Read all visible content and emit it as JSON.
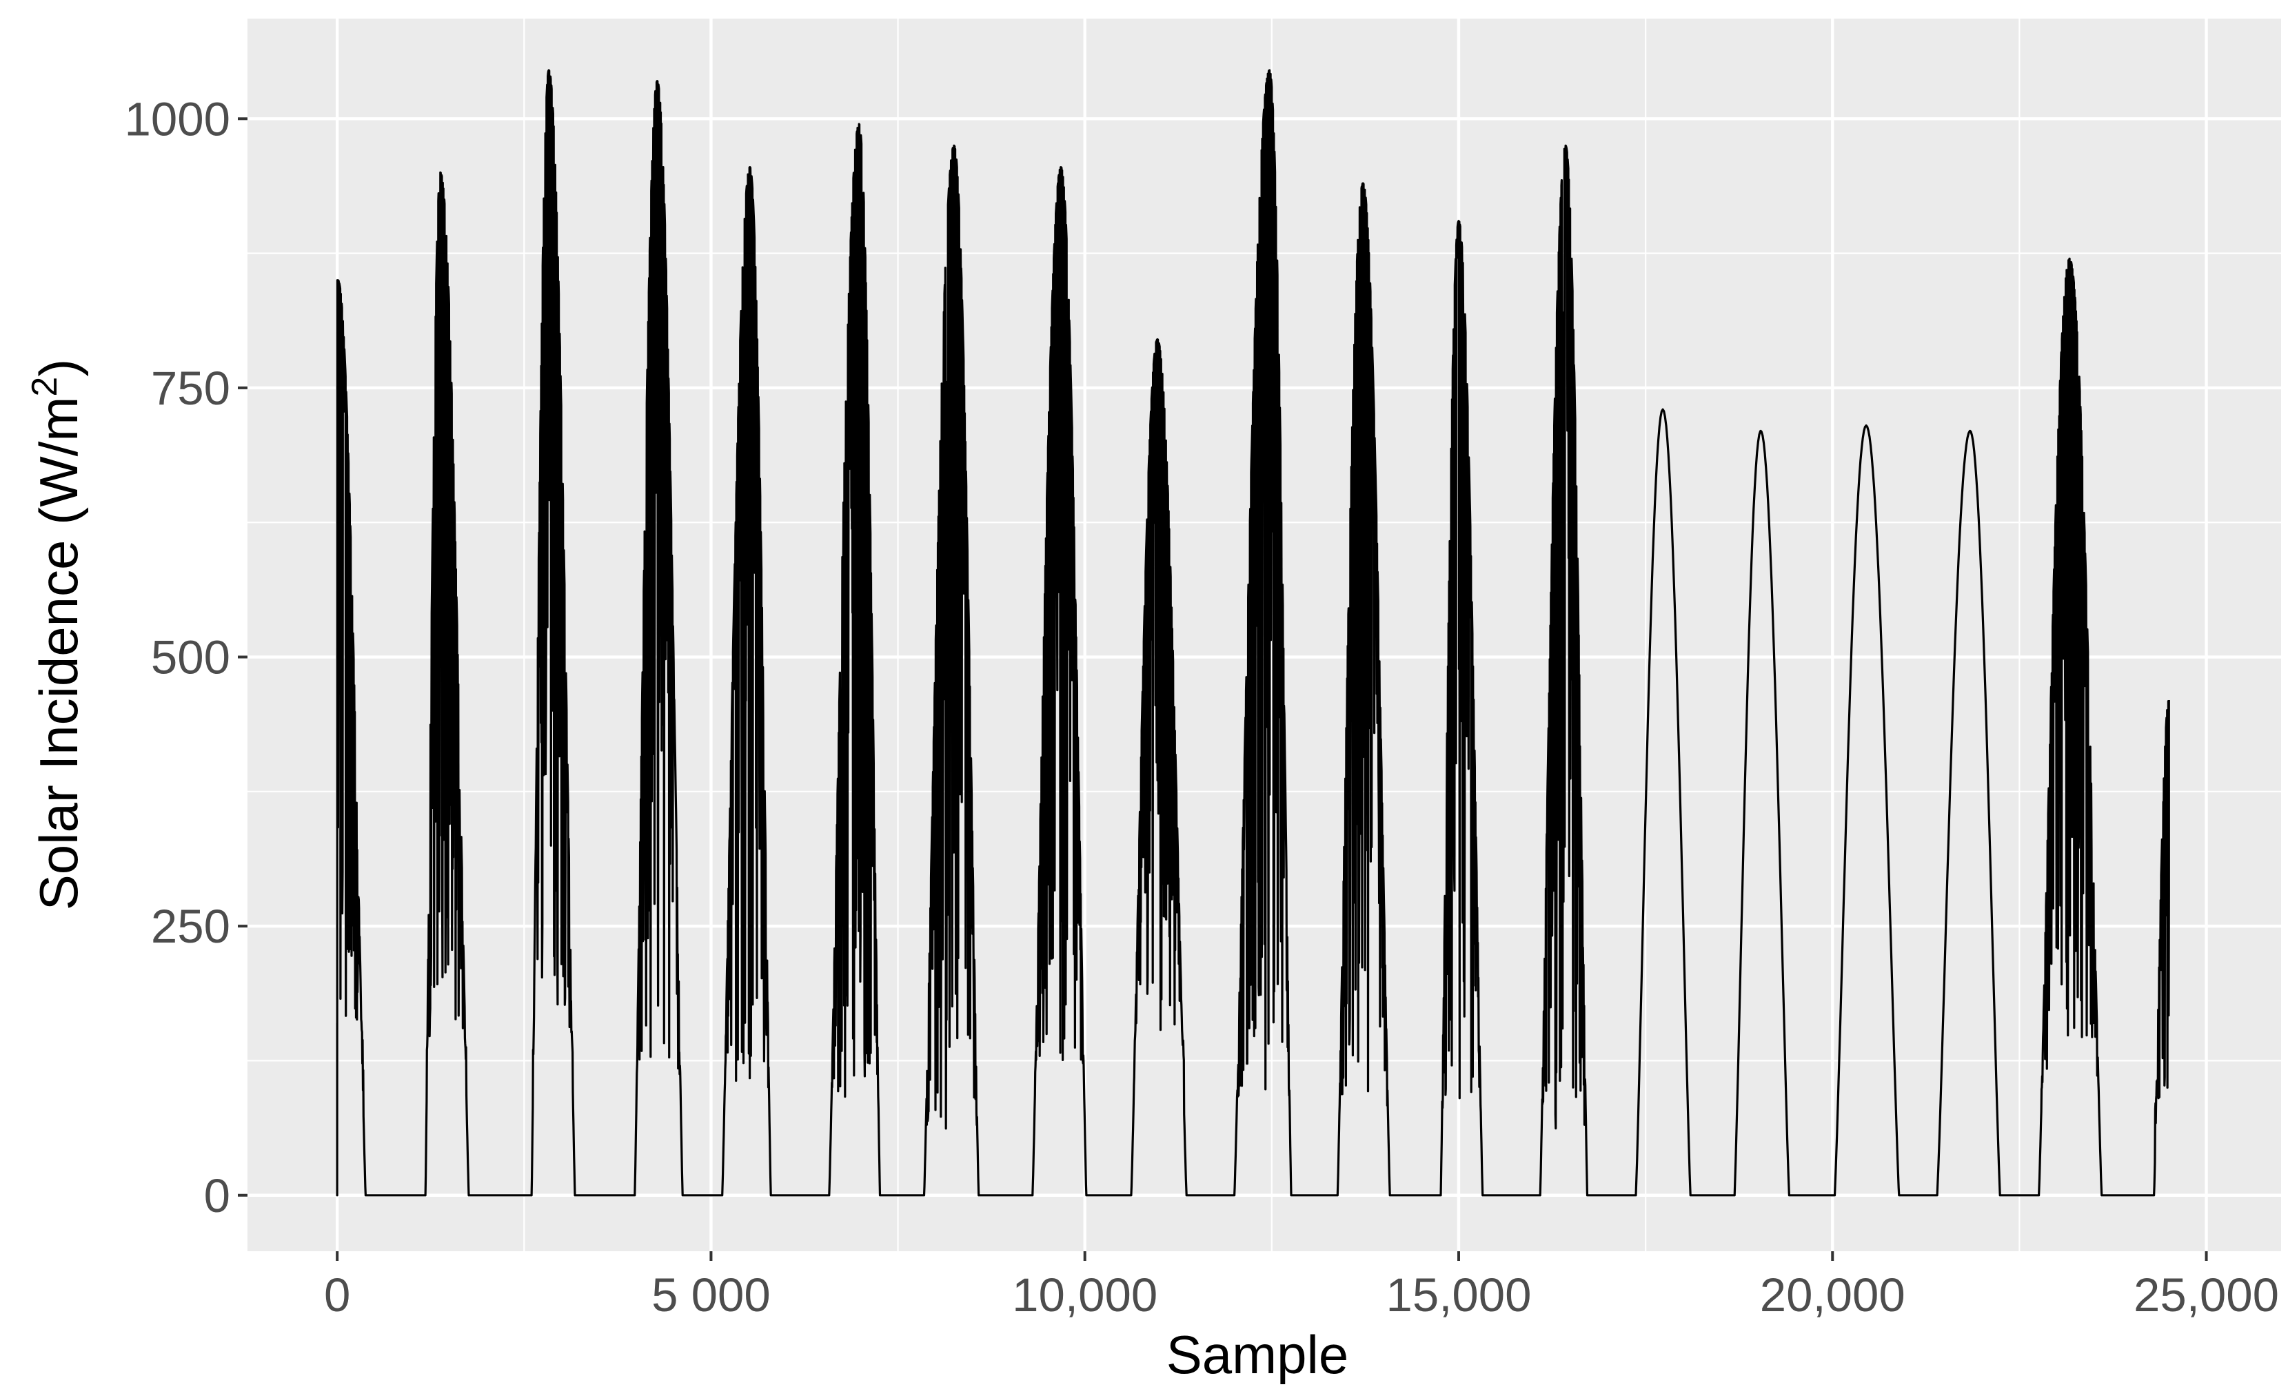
{
  "chart_data": {
    "type": "line",
    "title": "",
    "xlabel": "Sample",
    "ylabel": "Solar Incidence (W/m",
    "ylabel_superscript": "2",
    "ylabel_suffix": ")",
    "xlim": [
      -1200,
      26000
    ],
    "ylim": [
      -52,
      1093
    ],
    "x_ticks": [
      0,
      5000,
      10000,
      15000,
      20000,
      25000
    ],
    "x_tick_labels": [
      "0",
      "5 000",
      "10,000",
      "15,000",
      "20,000",
      "25,000"
    ],
    "y_ticks": [
      0,
      250,
      500,
      750,
      1000
    ],
    "y_tick_labels": [
      "0",
      "250",
      "500",
      "750",
      "1000"
    ],
    "grid": true,
    "legend": "none",
    "colors": {
      "panel_background": "#ebebeb",
      "grid": "#ffffff",
      "line": "#000000"
    },
    "series": [
      {
        "color": "#000000",
        "daily_peaks": [
          {
            "start": 0,
            "center": 10,
            "end": 380,
            "peak": 850,
            "min": 160,
            "noisy": true
          },
          {
            "start": 1180,
            "center": 1380,
            "end": 1760,
            "peak": 950,
            "min": 140,
            "noisy": true
          },
          {
            "start": 2600,
            "center": 2830,
            "end": 3180,
            "peak": 1045,
            "min": 150,
            "noisy": true
          },
          {
            "start": 3980,
            "center": 4280,
            "end": 4620,
            "peak": 1035,
            "min": 110,
            "noisy": true
          },
          {
            "start": 5150,
            "center": 5520,
            "end": 5800,
            "peak": 955,
            "min": 100,
            "noisy": true
          },
          {
            "start": 6580,
            "center": 6980,
            "end": 7260,
            "peak": 995,
            "min": 90,
            "noisy": true
          },
          {
            "start": 7850,
            "center": 8250,
            "end": 8580,
            "peak": 975,
            "min": 60,
            "noisy": true
          },
          {
            "start": 9300,
            "center": 9680,
            "end": 10020,
            "peak": 955,
            "min": 120,
            "noisy": true
          },
          {
            "start": 10620,
            "center": 10970,
            "end": 11360,
            "peak": 795,
            "min": 150,
            "noisy": true
          },
          {
            "start": 12000,
            "center": 12470,
            "end": 12760,
            "peak": 1045,
            "min": 90,
            "noisy": true
          },
          {
            "start": 13380,
            "center": 13720,
            "end": 14080,
            "peak": 940,
            "min": 80,
            "noisy": true
          },
          {
            "start": 14760,
            "center": 15000,
            "end": 15320,
            "peak": 905,
            "min": 80,
            "noisy": true
          },
          {
            "start": 16090,
            "center": 16430,
            "end": 16720,
            "peak": 975,
            "min": 60,
            "noisy": true
          },
          {
            "start": 17370,
            "center": 17730,
            "end": 18100,
            "peak": 730,
            "min": 0,
            "noisy": false
          },
          {
            "start": 18690,
            "center": 19040,
            "end": 19420,
            "peak": 710,
            "min": 0,
            "noisy": false
          },
          {
            "start": 20030,
            "center": 20450,
            "end": 20890,
            "peak": 715,
            "min": 0,
            "noisy": false
          },
          {
            "start": 21400,
            "center": 21840,
            "end": 22240,
            "peak": 710,
            "min": 0,
            "noisy": false
          },
          {
            "start": 22760,
            "center": 23170,
            "end": 23600,
            "peak": 870,
            "min": 100,
            "noisy": true
          },
          {
            "start": 24300,
            "center": 24500,
            "end": 24500,
            "peak": 460,
            "min": 90,
            "noisy": true
          }
        ]
      }
    ]
  }
}
